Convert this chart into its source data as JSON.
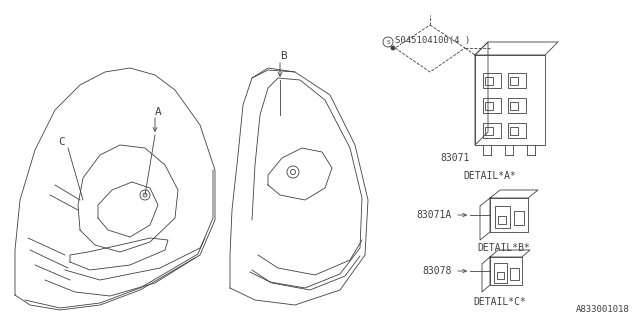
{
  "bg_color": "#ffffff",
  "line_color": "#404040",
  "text_color": "#404040",
  "diagram_id": "A833001018",
  "part_label_S": "S045104100(4 )",
  "part_number_A_detail": "83071",
  "detail_A_label": "DETAIL*A*",
  "part_number_B_detail": "83071A",
  "detail_B_label": "DETAIL*B*",
  "part_number_C_detail": "83078",
  "detail_C_label": "DETAIL*C*",
  "label_A": "A",
  "label_B": "B",
  "label_C": "C",
  "font_size": 7
}
